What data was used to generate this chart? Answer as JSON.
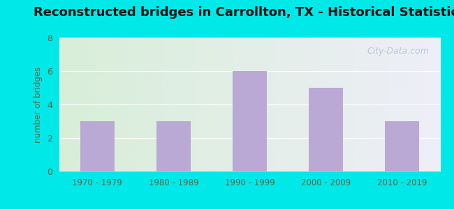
{
  "title": "Reconstructed bridges in Carrollton, TX - Historical Statistics",
  "categories": [
    "1970 - 1979",
    "1980 - 1989",
    "1990 - 1999",
    "2000 - 2009",
    "2010 - 2019"
  ],
  "values": [
    3,
    3,
    6,
    5,
    3
  ],
  "bar_color": "#b9a9d4",
  "background_outer": "#00e8e8",
  "background_inner_left": "#d8eed8",
  "background_inner_right": "#eeeef8",
  "ylabel": "number of bridges",
  "ylim": [
    0,
    8
  ],
  "yticks": [
    0,
    2,
    4,
    6,
    8
  ],
  "title_fontsize": 13,
  "axis_label_color": "#556644",
  "tick_label_color": "#556644",
  "watermark": "City-Data.com",
  "watermark_color": "#aabbcc",
  "grid_color": "#ffffff",
  "bar_width": 0.45
}
